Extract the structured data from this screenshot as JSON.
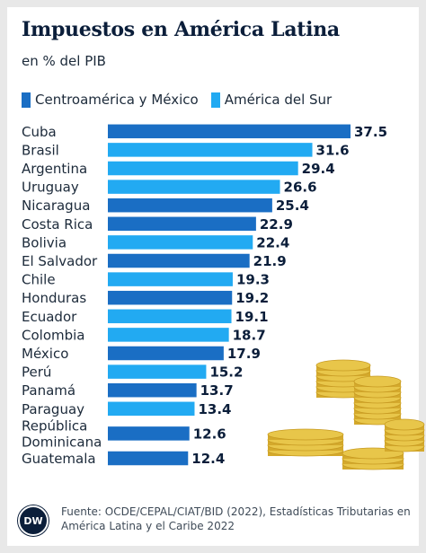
{
  "header": {
    "title": "Impuestos en América Latina",
    "subtitle": "en % del PIB"
  },
  "colors": {
    "centroamerica": "#1a6ec4",
    "sur": "#22aaf2",
    "text": "#0b1e3a",
    "coin": "#e8c64a"
  },
  "chart_data": {
    "type": "bar",
    "orientation": "horizontal",
    "title": "Impuestos en América Latina",
    "subtitle": "en % del PIB",
    "legend": [
      {
        "key": "centroamerica",
        "label": "Centroamérica y México"
      },
      {
        "key": "sur",
        "label": "América del Sur"
      }
    ],
    "legend_position": "top-left",
    "grid": false,
    "xlim": [
      0,
      37.5
    ],
    "bars": [
      {
        "label": "Cuba",
        "value": 37.5,
        "value_label": "37.5",
        "group": "centroamerica"
      },
      {
        "label": "Brasil",
        "value": 31.6,
        "value_label": "31.6",
        "group": "sur"
      },
      {
        "label": "Argentina",
        "value": 29.4,
        "value_label": "29.4",
        "group": "sur"
      },
      {
        "label": "Uruguay",
        "value": 26.6,
        "value_label": "26.6",
        "group": "sur"
      },
      {
        "label": "Nicaragua",
        "value": 25.4,
        "value_label": "25.4",
        "group": "centroamerica"
      },
      {
        "label": "Costa Rica",
        "value": 22.9,
        "value_label": "22.9",
        "group": "centroamerica"
      },
      {
        "label": "Bolivia",
        "value": 22.4,
        "value_label": "22.4",
        "group": "sur"
      },
      {
        "label": "El Salvador",
        "value": 21.9,
        "value_label": "21.9",
        "group": "centroamerica"
      },
      {
        "label": "Chile",
        "value": 19.3,
        "value_label": "19.3",
        "group": "sur"
      },
      {
        "label": "Honduras",
        "value": 19.2,
        "value_label": "19.2",
        "group": "centroamerica"
      },
      {
        "label": "Ecuador",
        "value": 19.1,
        "value_label": "19.1",
        "group": "sur"
      },
      {
        "label": "Colombia",
        "value": 18.7,
        "value_label": "18.7",
        "group": "sur"
      },
      {
        "label": "México",
        "value": 17.9,
        "value_label": "17.9",
        "group": "centroamerica"
      },
      {
        "label": "Perú",
        "value": 15.2,
        "value_label": "15.2",
        "group": "sur"
      },
      {
        "label": "Panamá",
        "value": 13.7,
        "value_label": "13.7",
        "group": "centroamerica"
      },
      {
        "label": "Paraguay",
        "value": 13.4,
        "value_label": "13.4",
        "group": "sur"
      },
      {
        "label": "República\nDominicana",
        "value": 12.6,
        "value_label": "12.6",
        "group": "centroamerica"
      },
      {
        "label": "Guatemala",
        "value": 12.4,
        "value_label": "12.4",
        "group": "centroamerica"
      }
    ]
  },
  "footer": {
    "logo_text": "DW",
    "source_line1": "Fuente: OCDE/CEPAL/CIAT/BID (2022), Estadísticas Tributarias en",
    "source_line2": "América Latina y el Caribe 2022"
  }
}
